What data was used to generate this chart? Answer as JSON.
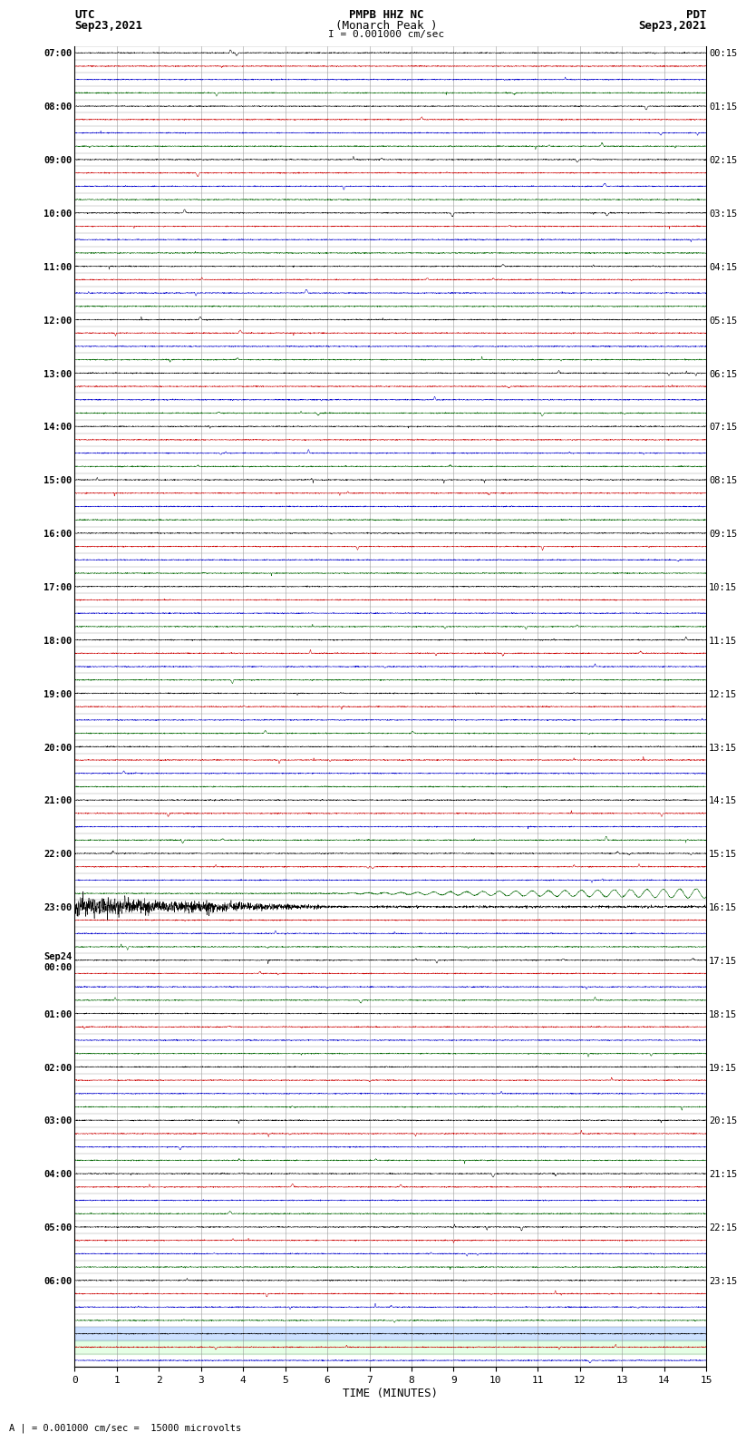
{
  "title_line1": "PMPB HHZ NC",
  "title_line2": "(Monarch Peak )",
  "scale_text": "I = 0.001000 cm/sec",
  "left_header": "UTC",
  "left_date": "Sep23,2021",
  "right_header": "PDT",
  "right_date": "Sep23,2021",
  "footer_text": "A | = 0.001000 cm/sec =  15000 microvolts",
  "xlabel": "TIME (MINUTES)",
  "xticks": [
    0,
    1,
    2,
    3,
    4,
    5,
    6,
    7,
    8,
    9,
    10,
    11,
    12,
    13,
    14,
    15
  ],
  "fig_width": 8.5,
  "fig_height": 16.13,
  "bg_color": "#ffffff",
  "grid_color": "#999999",
  "trace_colors": [
    "#000000",
    "#cc0000",
    "#0000cc",
    "#006600"
  ],
  "utc_labels": [
    "07:00",
    "",
    "",
    "",
    "08:00",
    "",
    "",
    "",
    "09:00",
    "",
    "",
    "",
    "10:00",
    "",
    "",
    "",
    "11:00",
    "",
    "",
    "",
    "12:00",
    "",
    "",
    "",
    "13:00",
    "",
    "",
    "",
    "14:00",
    "",
    "",
    "",
    "15:00",
    "",
    "",
    "",
    "16:00",
    "",
    "",
    "",
    "17:00",
    "",
    "",
    "",
    "18:00",
    "",
    "",
    "",
    "19:00",
    "",
    "",
    "",
    "20:00",
    "",
    "",
    "",
    "21:00",
    "",
    "",
    "",
    "22:00",
    "",
    "",
    "",
    "23:00",
    "",
    "",
    "",
    "Sep24\n00:00",
    "",
    "",
    "",
    "01:00",
    "",
    "",
    "",
    "02:00",
    "",
    "",
    "",
    "03:00",
    "",
    "",
    "",
    "04:00",
    "",
    "",
    "",
    "05:00",
    "",
    "",
    "",
    "06:00",
    "",
    "",
    "",
    "",
    "",
    ""
  ],
  "pdt_labels": [
    "00:15",
    "",
    "",
    "",
    "01:15",
    "",
    "",
    "",
    "02:15",
    "",
    "",
    "",
    "03:15",
    "",
    "",
    "",
    "04:15",
    "",
    "",
    "",
    "05:15",
    "",
    "",
    "",
    "06:15",
    "",
    "",
    "",
    "07:15",
    "",
    "",
    "",
    "08:15",
    "",
    "",
    "",
    "09:15",
    "",
    "",
    "",
    "10:15",
    "",
    "",
    "",
    "11:15",
    "",
    "",
    "",
    "12:15",
    "",
    "",
    "",
    "13:15",
    "",
    "",
    "",
    "14:15",
    "",
    "",
    "",
    "15:15",
    "",
    "",
    "",
    "16:15",
    "",
    "",
    "",
    "17:15",
    "",
    "",
    "",
    "18:15",
    "",
    "",
    "",
    "19:15",
    "",
    "",
    "",
    "20:15",
    "",
    "",
    "",
    "21:15",
    "",
    "",
    "",
    "22:15",
    "",
    "",
    "",
    "23:15",
    "",
    "",
    "",
    "",
    "",
    ""
  ],
  "n_rows": 99,
  "minutes_per_row": 15,
  "noise_seed": 42,
  "eq_black_row": 64,
  "eq_green_row": 63,
  "highlight_blue_row": 96,
  "highlight_green_row": 97
}
